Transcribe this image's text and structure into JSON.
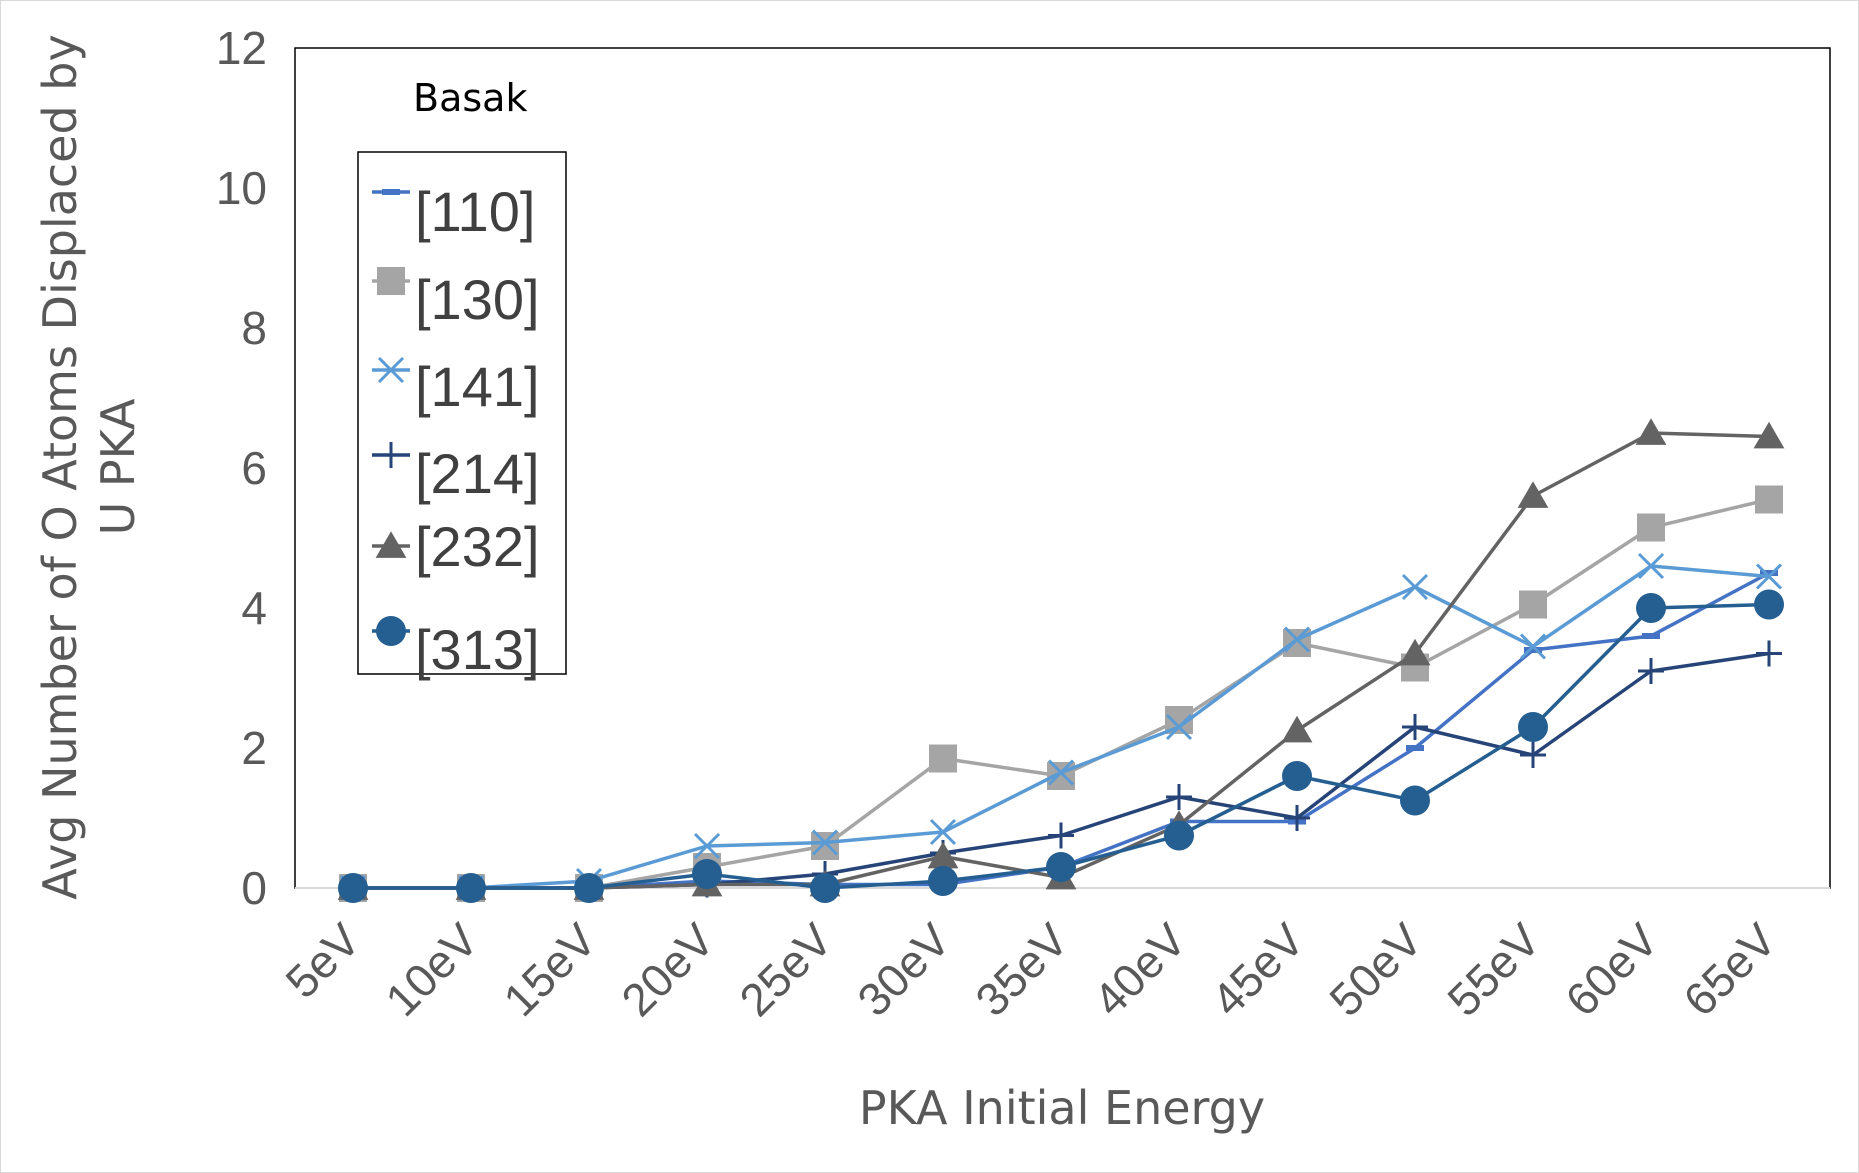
{
  "chart_data": {
    "type": "line",
    "categories": [
      "5eV",
      "10eV",
      "15eV",
      "20eV",
      "25eV",
      "30eV",
      "35eV",
      "40eV",
      "45eV",
      "50eV",
      "55eV",
      "60eV",
      "65eV"
    ],
    "xlabel": "PKA Initial Energy",
    "ylabel_lines": [
      "Avg Number of O Atoms Displaced by",
      "U PKA"
    ],
    "ylim": [
      0,
      12
    ],
    "yticks": [
      0,
      2,
      4,
      6,
      8,
      10,
      12
    ],
    "grid": false,
    "legend_placement": "top-left",
    "annotation": "Basak",
    "series": [
      {
        "name": "[110]",
        "color": "#4472c4",
        "marker": "dash",
        "values": [
          0,
          0,
          0,
          0.1,
          0.05,
          0.05,
          0.3,
          0.95,
          0.95,
          2.0,
          3.4,
          3.6,
          4.5
        ]
      },
      {
        "name": "[130]",
        "color": "#a5a5a5",
        "marker": "square",
        "values": [
          0,
          0,
          0,
          0.3,
          0.6,
          1.85,
          1.6,
          2.4,
          3.5,
          3.15,
          4.05,
          5.15,
          5.55
        ]
      },
      {
        "name": "[141]",
        "color": "#5b9bd5",
        "marker": "x",
        "values": [
          0,
          0,
          0.1,
          0.6,
          0.65,
          0.8,
          1.65,
          2.3,
          3.55,
          4.3,
          3.45,
          4.6,
          4.45
        ]
      },
      {
        "name": "[214]",
        "color": "#264478",
        "marker": "plus",
        "values": [
          0,
          0,
          0,
          0.05,
          0.2,
          0.5,
          0.75,
          1.3,
          1.0,
          2.3,
          1.9,
          3.1,
          3.35
        ]
      },
      {
        "name": "[232]",
        "color": "#636363",
        "marker": "triangle",
        "values": [
          0,
          0,
          0,
          0.05,
          0.05,
          0.45,
          0.15,
          0.9,
          2.25,
          3.35,
          5.6,
          6.5,
          6.45
        ]
      },
      {
        "name": "[313]",
        "color": "#255e91",
        "marker": "circle",
        "values": [
          0,
          0,
          0,
          0.2,
          0,
          0.1,
          0.3,
          0.75,
          1.6,
          1.25,
          2.3,
          4.0,
          4.05
        ]
      }
    ]
  }
}
